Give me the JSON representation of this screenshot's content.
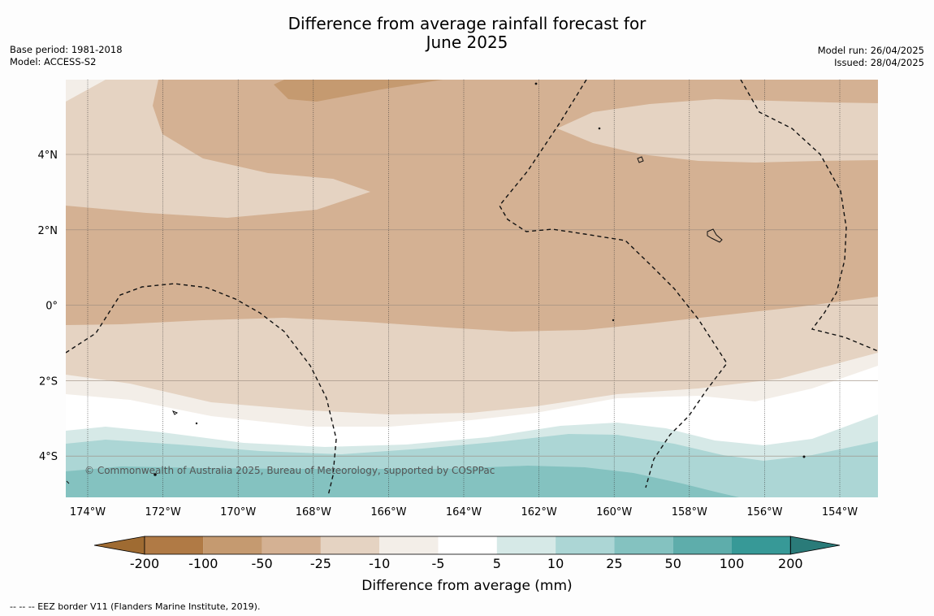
{
  "title_line1": "Difference from average rainfall forecast for",
  "title_line2": "June 2025",
  "left_meta": {
    "base_period": "Base period: 1981-2018",
    "model": "Model: ACCESS-S2"
  },
  "right_meta": {
    "model_run": "Model run: 26/04/2025",
    "issued": "Issued: 28/04/2025"
  },
  "map": {
    "lon_labels": [
      "174°W",
      "172°W",
      "170°W",
      "168°W",
      "166°W",
      "164°W",
      "162°W",
      "160°W",
      "158°W",
      "156°W",
      "154°W"
    ],
    "lat_labels": [
      "4°N",
      "2°N",
      "0°",
      "2°S",
      "4°S"
    ],
    "copyright": "© Commonwealth of Australia 2025, Bureau of Meteorology, supported by COSPPac",
    "eez_border_style": "dashed"
  },
  "colorbar": {
    "ticks": [
      "-200",
      "-100",
      "-50",
      "-25",
      "-10",
      "-5",
      "5",
      "10",
      "25",
      "50",
      "100",
      "200"
    ],
    "colors": [
      "#9f6b32",
      "#b07a45",
      "#c59a70",
      "#d4b193",
      "#e5d3c2",
      "#f3eee8",
      "#ffffff",
      "#d6e9e7",
      "#acd6d5",
      "#84c2c0",
      "#5eadab",
      "#379997",
      "#2a7b79"
    ],
    "label": "Difference from average (mm)"
  },
  "footer": "--  --  -- EEZ border V11 (Flanders Marine Institute, 2019)."
}
